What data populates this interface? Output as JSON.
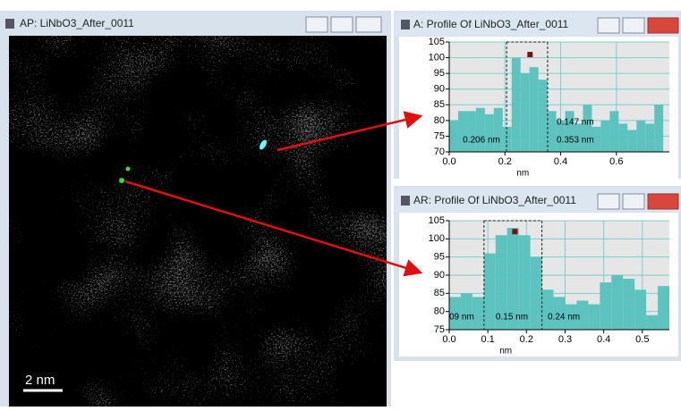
{
  "left_window": {
    "title": "AP: LiNbO3_After_0011",
    "scale_bar": "2 nm"
  },
  "chart_data": [
    {
      "type": "histogram",
      "title": "A: Profile Of LiNbO3_After_0011",
      "x_label": "nm",
      "color": "#5ec3bf",
      "grid": true,
      "bins": [
        0,
        0.032,
        0.064,
        0.096,
        0.128,
        0.16,
        0.192,
        0.224,
        0.256,
        0.288,
        0.32,
        0.352,
        0.384,
        0.416,
        0.448,
        0.48,
        0.512,
        0.544,
        0.576,
        0.608,
        0.64,
        0.672,
        0.704,
        0.736,
        0.768
      ],
      "counts": [
        80,
        83,
        83,
        84,
        82,
        84,
        78,
        100,
        95,
        97,
        93,
        83,
        80,
        83,
        79,
        85,
        78,
        80,
        83,
        79,
        77,
        80,
        79,
        85
      ],
      "xlim": [
        0,
        0.79
      ],
      "xticks": [
        {
          "value": 0,
          "label": "0.0"
        },
        0.2,
        0.4,
        0.6
      ],
      "ylim": [
        70,
        105
      ],
      "yticks": [
        70,
        75,
        80,
        85,
        90,
        95,
        100,
        105
      ],
      "cursors": [
        0.206,
        0.353
      ],
      "marker": {
        "x": 0.29,
        "y": 101
      },
      "annotations": [
        "0.206 nm",
        "0.147 nm",
        "0.353 nm"
      ]
    },
    {
      "type": "histogram",
      "title": "AR: Profile Of LiNbO3_After_0011",
      "x_label": "nm",
      "color": "#5ec3bf",
      "grid": true,
      "bins": [
        0,
        0.03,
        0.06,
        0.09,
        0.12,
        0.15,
        0.18,
        0.21,
        0.24,
        0.27,
        0.3,
        0.33,
        0.36,
        0.39,
        0.42,
        0.45,
        0.48,
        0.51,
        0.54,
        0.57
      ],
      "counts": [
        84,
        85,
        84,
        96,
        101,
        103,
        101,
        95,
        86,
        84,
        82,
        83,
        82,
        88,
        90,
        89,
        86,
        79,
        87
      ],
      "xlim": [
        0,
        0.57
      ],
      "xticks": [
        {
          "value": 0,
          "label": "0.0"
        },
        0.1,
        0.2,
        0.3,
        0.4,
        0.5
      ],
      "ylim": [
        75,
        105
      ],
      "yticks": [
        75,
        80,
        85,
        90,
        95,
        100,
        105
      ],
      "cursors": [
        0.09,
        0.24
      ],
      "marker": {
        "x": 0.17,
        "y": 102
      },
      "annotations": [
        "09 nm",
        "0.15 nm",
        "0.24 nm"
      ]
    }
  ]
}
